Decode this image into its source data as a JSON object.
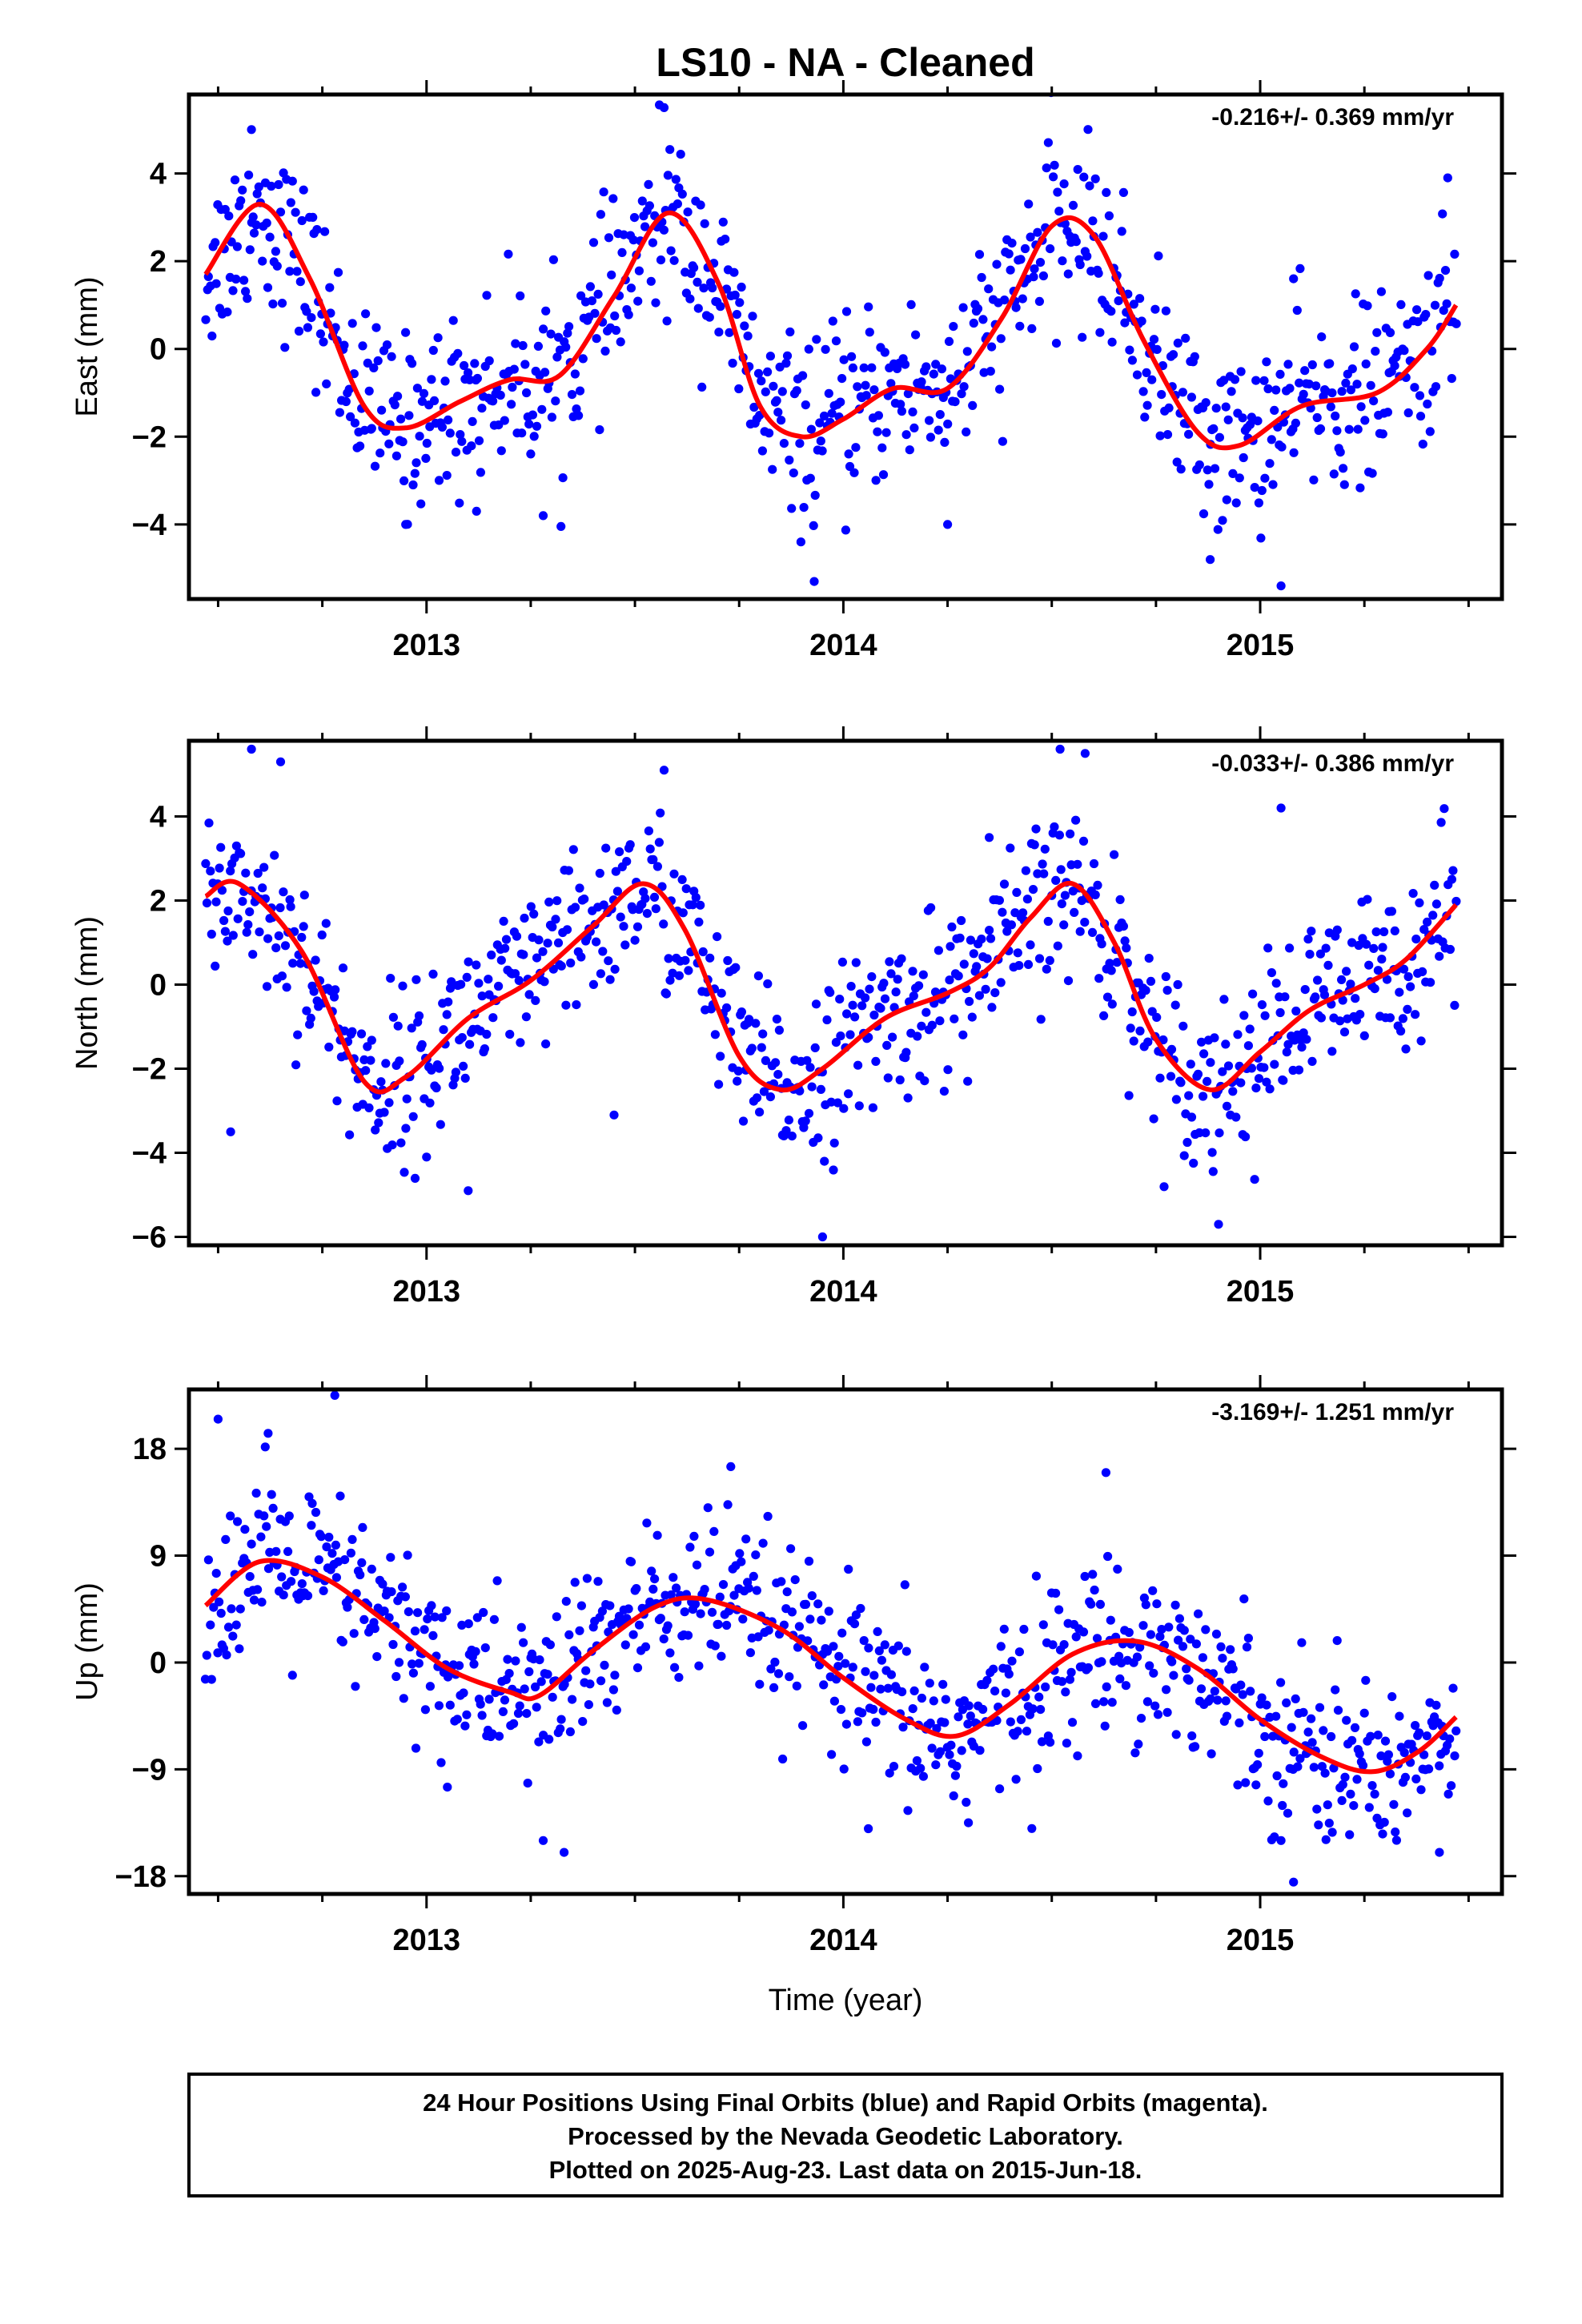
{
  "title": "LS10  - NA - Cleaned",
  "xlabel": "Time (year)",
  "footer": [
    "24 Hour Positions Using Final Orbits (blue) and Rapid Orbits (magenta).",
    "Processed by the Nevada Geodetic Laboratory.",
    "Plotted on 2025-Aug-23. Last data on 2015-Jun-18."
  ],
  "colors": {
    "points": "#0000ff",
    "fit": "#ff0000",
    "frame": "#000000"
  },
  "chart_data": [
    {
      "type": "scatter",
      "ylabel": "East (mm)",
      "rate": "-0.216+/- 0.369 mm/yr",
      "xlim": [
        2012.43,
        2015.58
      ],
      "ylim": [
        -5.7,
        5.8
      ],
      "xticks": [
        2013,
        2014,
        2015
      ],
      "yticks": [
        -4,
        -2,
        0,
        2,
        4
      ],
      "ytick_labels": [
        "−4",
        "−2",
        "0",
        "2",
        "4"
      ],
      "fit": {
        "x": [
          2012.47,
          2012.6,
          2012.72,
          2012.85,
          2012.95,
          2013.08,
          2013.2,
          2013.32,
          2013.45,
          2013.58,
          2013.7,
          2013.8,
          2013.9,
          2014.0,
          2014.12,
          2014.25,
          2014.38,
          2014.5,
          2014.6,
          2014.72,
          2014.85,
          2014.95,
          2015.1,
          2015.28,
          2015.4,
          2015.47
        ],
        "y": [
          1.7,
          3.3,
          1.6,
          -1.3,
          -1.8,
          -1.2,
          -0.7,
          -0.6,
          1.2,
          3.1,
          1.5,
          -1.3,
          -2.0,
          -1.6,
          -0.9,
          -0.9,
          0.7,
          2.8,
          2.6,
          0.2,
          -1.9,
          -2.2,
          -1.3,
          -1.0,
          0.0,
          1.0
        ]
      },
      "scatter_noise": 1.0,
      "outliers": {
        "x": [
          2012.58,
          2012.95,
          2013.12,
          2013.28,
          2013.57,
          2013.93,
          2014.25,
          2014.88,
          2015.05,
          2015.08,
          2015.45
        ],
        "y": [
          5.0,
          -4.0,
          -3.7,
          -3.8,
          5.5,
          -5.3,
          -4.0,
          -4.8,
          -5.4,
          1.6,
          3.9
        ]
      }
    },
    {
      "type": "scatter",
      "ylabel": "North (mm)",
      "rate": "-0.033+/- 0.386 mm/yr",
      "xlim": [
        2012.43,
        2015.58
      ],
      "ylim": [
        -6.2,
        5.8
      ],
      "xticks": [
        2013,
        2014,
        2015
      ],
      "yticks": [
        -6,
        -4,
        -2,
        0,
        2,
        4
      ],
      "ytick_labels": [
        "−6",
        "−4",
        "−2",
        "0",
        "2",
        "4"
      ],
      "fit": {
        "x": [
          2012.47,
          2012.55,
          2012.7,
          2012.85,
          2012.95,
          2013.1,
          2013.25,
          2013.4,
          2013.52,
          2013.62,
          2013.75,
          2013.85,
          2013.95,
          2014.1,
          2014.25,
          2014.35,
          2014.45,
          2014.55,
          2014.65,
          2014.75,
          2014.88,
          2015.0,
          2015.12,
          2015.25,
          2015.35,
          2015.47
        ],
        "y": [
          2.1,
          2.4,
          0.8,
          -2.3,
          -2.2,
          -0.8,
          0.1,
          1.4,
          2.4,
          1.3,
          -1.7,
          -2.5,
          -2.0,
          -0.8,
          -0.2,
          0.4,
          1.6,
          2.4,
          1.0,
          -1.3,
          -2.5,
          -1.6,
          -0.6,
          0.0,
          0.6,
          1.9
        ]
      },
      "scatter_noise": 1.0,
      "outliers": {
        "x": [
          2012.53,
          2012.58,
          2012.65,
          2013.0,
          2013.1,
          2013.45,
          2013.57,
          2013.95,
          2014.35,
          2014.52,
          2014.58,
          2014.9,
          2015.05
        ],
        "y": [
          -3.5,
          5.6,
          5.3,
          -4.1,
          -4.9,
          -3.1,
          5.1,
          -6.0,
          3.5,
          5.6,
          5.5,
          -5.7,
          4.2
        ]
      }
    },
    {
      "type": "scatter",
      "ylabel": "Up (mm)",
      "rate": "-3.169+/- 1.251 mm/yr",
      "xlim": [
        2012.43,
        2015.58
      ],
      "ylim": [
        -19.5,
        23.0
      ],
      "xticks": [
        2013,
        2014,
        2015
      ],
      "yticks": [
        -18,
        -9,
        0,
        9,
        18
      ],
      "ytick_labels": [
        "−18",
        "−9",
        "0",
        "9",
        "18"
      ],
      "fit": {
        "x": [
          2012.47,
          2012.6,
          2012.75,
          2012.9,
          2013.05,
          2013.2,
          2013.27,
          2013.4,
          2013.55,
          2013.67,
          2013.85,
          2014.0,
          2014.15,
          2014.27,
          2014.4,
          2014.55,
          2014.7,
          2014.85,
          2015.0,
          2015.15,
          2015.27,
          2015.38,
          2015.47
        ],
        "y": [
          4.8,
          8.5,
          7.2,
          3.5,
          -0.5,
          -2.5,
          -2.8,
          1.0,
          4.7,
          5.3,
          2.8,
          -1.3,
          -4.8,
          -6.2,
          -3.5,
          0.7,
          1.8,
          -0.5,
          -4.8,
          -8.0,
          -9.2,
          -7.5,
          -4.6
        ]
      },
      "scatter_noise": 3.6,
      "outliers": {
        "x": [
          2012.5,
          2012.62,
          2012.78,
          2013.05,
          2013.28,
          2013.33,
          2013.73,
          2014.06,
          2014.3,
          2014.63,
          2015.05,
          2015.08,
          2015.43
        ],
        "y": [
          20.5,
          19.3,
          22.5,
          -10.5,
          -15.0,
          -16.0,
          16.5,
          -14.0,
          -13.5,
          16.0,
          -15.0,
          -18.5,
          -16.0
        ]
      }
    }
  ]
}
